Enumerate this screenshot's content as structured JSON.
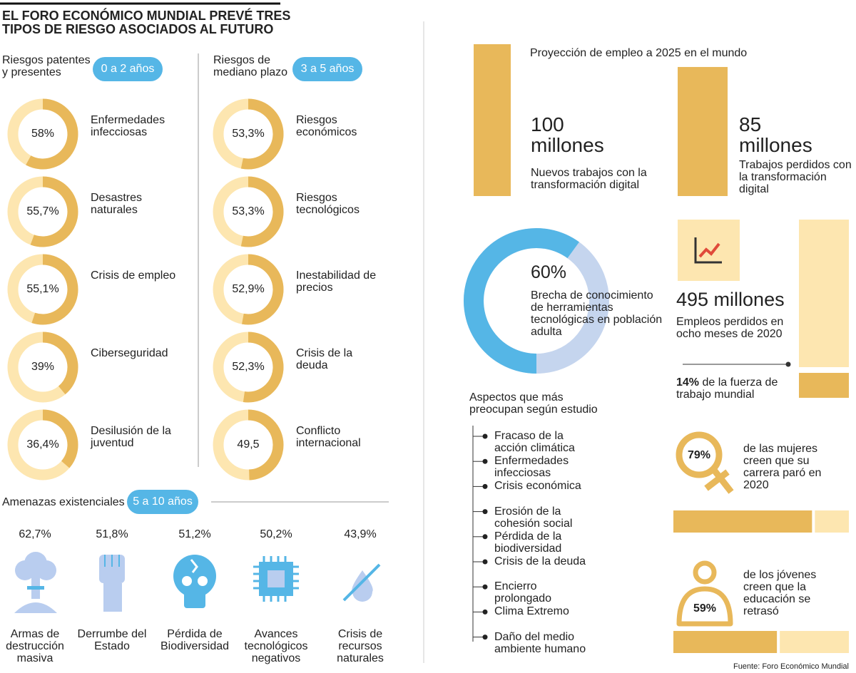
{
  "title": "EL FORO ECONÓMICO MUNDIAL PREVÉ TRES TIPOS DE RIESGO ASOCIADOS AL FUTURO",
  "short_term": {
    "label": "Riesgos patentes y presentes",
    "badge": "0 a 2 años",
    "items": [
      {
        "name": "Enfermedades infecciosas",
        "value": 58,
        "value_label": "58%"
      },
      {
        "name": "Desastres naturales",
        "value": 55.7,
        "value_label": "55,7%"
      },
      {
        "name": "Crisis de empleo",
        "value": 55.1,
        "value_label": "55,1%"
      },
      {
        "name": "Ciberseguridad",
        "value": 39,
        "value_label": "39%"
      },
      {
        "name": "Desilusión de la juventud",
        "value": 36.4,
        "value_label": "36,4%"
      }
    ]
  },
  "mid_term": {
    "label": "Riesgos de mediano plazo",
    "badge": "3 a 5 años",
    "items": [
      {
        "name": "Riesgos económicos",
        "value": 53.3,
        "value_label": "53,3%"
      },
      {
        "name": "Riesgos tecnológicos",
        "value": 53.3,
        "value_label": "53,3%"
      },
      {
        "name": "Inestabilidad de precios",
        "value": 52.9,
        "value_label": "52,9%"
      },
      {
        "name": "Crisis de la deuda",
        "value": 52.3,
        "value_label": "52,3%"
      },
      {
        "name": "Conflicto internacional",
        "value": 49.5,
        "value_label": "49,5"
      }
    ]
  },
  "existential": {
    "label": "Amenazas existenciales",
    "badge": "5 a 10 años",
    "items": [
      {
        "name": "Armas de destrucción masiva",
        "value": 62.7,
        "value_label": "62,7%"
      },
      {
        "name": "Derrumbe del Estado",
        "value": 51.8,
        "value_label": "51,8%"
      },
      {
        "name": "Pérdida de Biodiversidad",
        "value": 51.2,
        "value_label": "51,2%"
      },
      {
        "name": "Avances tecnológicos negativos",
        "value": 50.2,
        "value_label": "50,2%"
      },
      {
        "name": "Crisis de recursos naturales",
        "value": 43.9,
        "value_label": "43,9%"
      }
    ]
  },
  "jobs": {
    "title": "Proyección de empleo a 2025 en el mundo",
    "new": {
      "value": 100,
      "amount": "100 millones",
      "desc": "Nuevos trabajos con la transformación digital"
    },
    "lost": {
      "value": 85,
      "amount": "85 millones",
      "desc": "Trabajos perdidos con la transformación digital"
    }
  },
  "gap": {
    "value": 60,
    "value_label": "60%",
    "desc": "Brecha de conocimiento de herramientas tecnológicas en población adulta"
  },
  "lost_2020": {
    "amount": "495 millones",
    "desc": "Empleos perdidos en ocho meses de 2020",
    "share": 14,
    "share_label": "14%",
    "share_desc": "de la fuerza de trabajo mundial"
  },
  "concerns": {
    "title": "Aspectos que más preocupan según estudio",
    "items": [
      "Fracaso de la acción climática",
      "Enfermedades infecciosas",
      "Crisis económica",
      "Erosión de la cohesión social",
      "Pérdida de la biodiversidad",
      "Crisis de la deuda",
      "Encierro prolongado",
      "Clima Extremo",
      "Daño del medio ambiente humano"
    ]
  },
  "women": {
    "value": 79,
    "value_label": "79%",
    "desc": "de las mujeres creen que su carrera paró en 2020"
  },
  "youth": {
    "value": 59,
    "value_label": "59%",
    "desc": "de los jóvenes creen que la educación se retrasó"
  },
  "source": "Fuente: Foro Económico Mundial"
}
